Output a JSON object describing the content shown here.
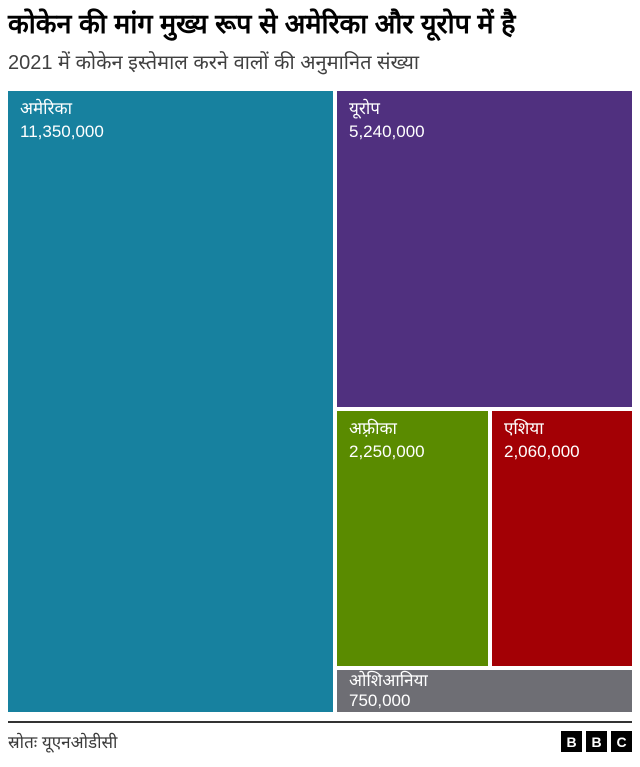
{
  "chart_data": {
    "type": "treemap",
    "title": "कोकेन की मांग मुख्य रूप से अमेरिका और यूरोप में है",
    "subtitle": "2021 में कोकेन इस्तेमाल करने वालों की अनुमानित संख्या",
    "legend_position": "none",
    "gridlines": false,
    "items": [
      {
        "label": "अमेरिका",
        "value": 11350000,
        "value_display": "11,350,000",
        "color": "#17819F"
      },
      {
        "label": "यूरोप",
        "value": 5240000,
        "value_display": "5,240,000",
        "color": "#50307F"
      },
      {
        "label": "अफ़्रीका",
        "value": 2250000,
        "value_display": "2,250,000",
        "color": "#5A8B00"
      },
      {
        "label": "एशिया",
        "value": 2060000,
        "value_display": "2,060,000",
        "color": "#A30005"
      },
      {
        "label": "ओशिआनिया",
        "value": 750000,
        "value_display": "750,000",
        "color": "#6E6E74"
      }
    ]
  },
  "footer": {
    "source": "स्रोतः यूएनओडीसी",
    "logo": {
      "letters": [
        "B",
        "B",
        "C"
      ],
      "box_color": "#000000"
    }
  }
}
